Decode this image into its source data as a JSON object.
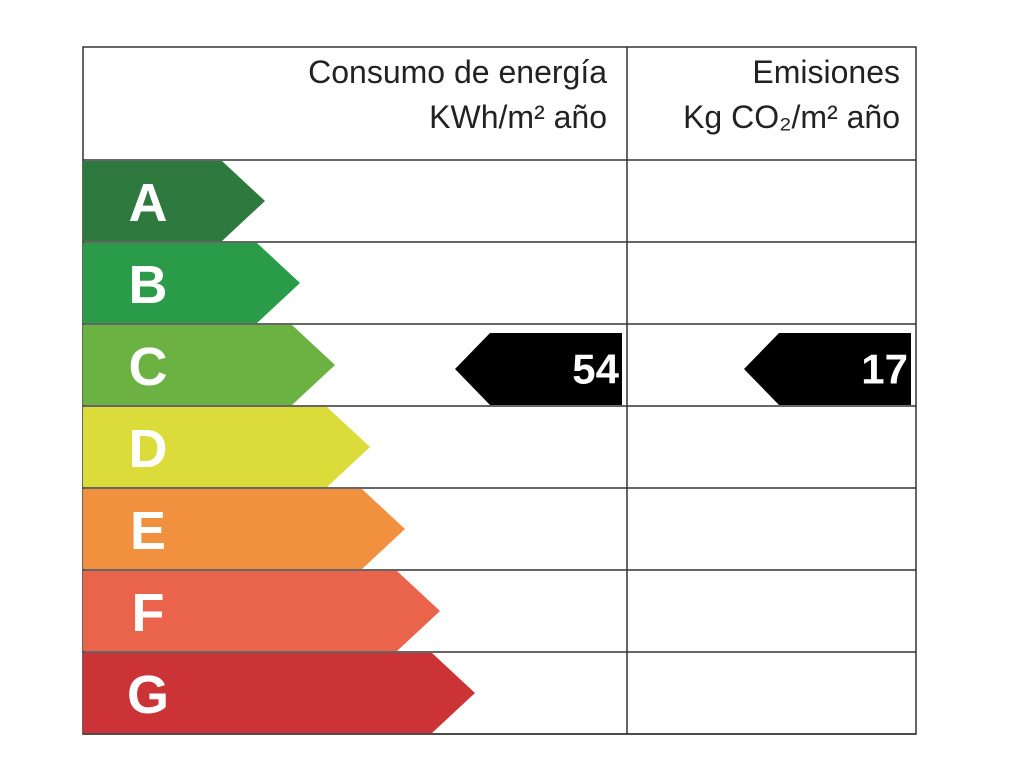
{
  "header": {
    "consumption": [
      "Consumo de energía",
      "KWh/m² año"
    ],
    "emissions": [
      "Emisiones",
      "Kg CO₂/m² año"
    ]
  },
  "classes": [
    {
      "label": "A",
      "color": "#2e7a3e"
    },
    {
      "label": "B",
      "color": "#2a9b48"
    },
    {
      "label": "C",
      "color": "#6bb243"
    },
    {
      "label": "D",
      "color": "#dbdb3a"
    },
    {
      "label": "E",
      "color": "#f1913f"
    },
    {
      "label": "F",
      "color": "#e9644b"
    },
    {
      "label": "G",
      "color": "#cc3336"
    }
  ],
  "consumption": {
    "value": 54,
    "class": "C"
  },
  "emissions": {
    "value": 17,
    "class": "C"
  }
}
